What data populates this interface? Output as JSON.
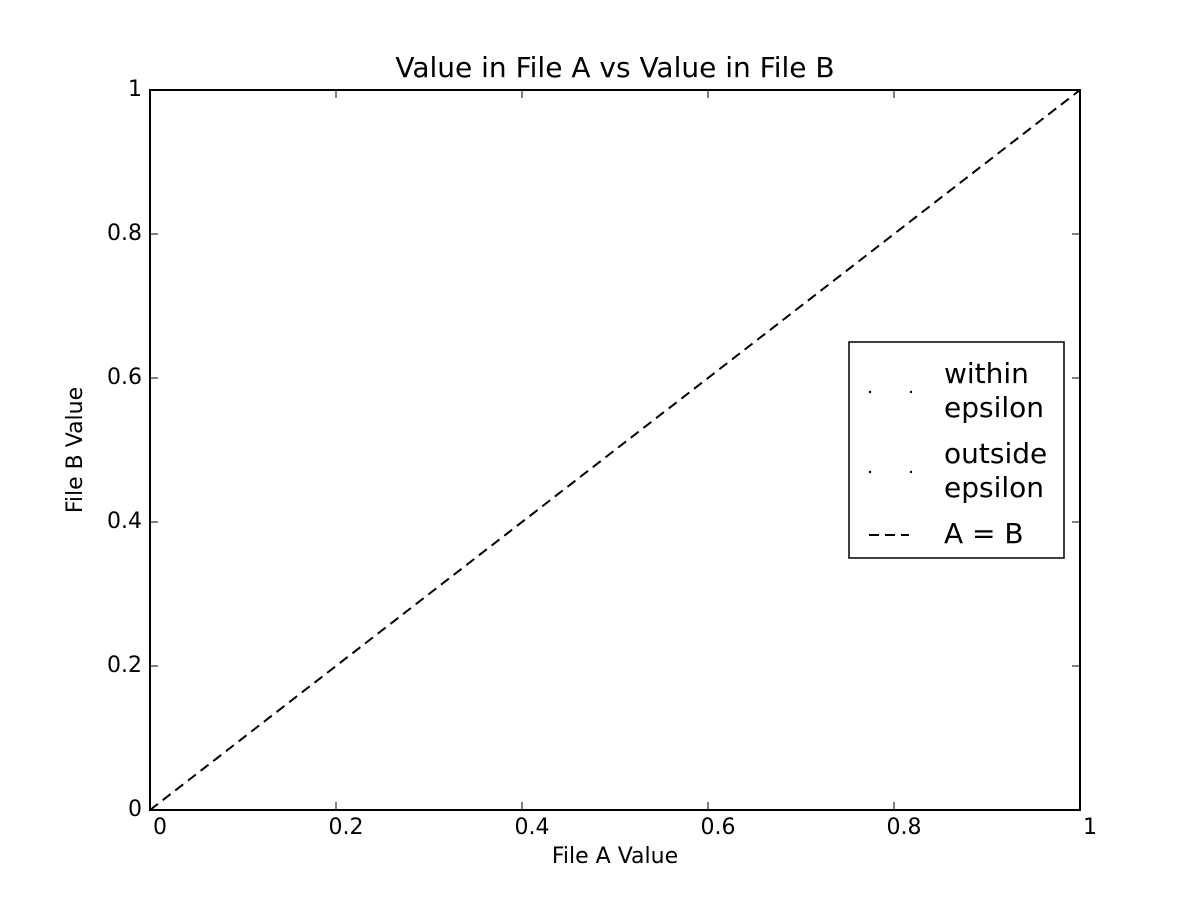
{
  "chart_data": {
    "type": "scatter",
    "title": "Value in File A vs Value in File B",
    "x_label": "File A Value",
    "y_label": "File B Value",
    "xlim": [
      0,
      1
    ],
    "ylim": [
      0,
      1
    ],
    "xticks": [
      0,
      0.2,
      0.4,
      0.6,
      0.8,
      1
    ],
    "yticks": [
      0,
      0.2,
      0.4,
      0.6,
      0.8,
      1
    ],
    "grid": false,
    "legend": "center right",
    "series": [
      {
        "name": "within\nepsilon",
        "type": "scatter",
        "color": "#000000",
        "x": [],
        "y": []
      },
      {
        "name": "outside\nepsilon",
        "type": "scatter",
        "color": "#000000",
        "x": [],
        "y": []
      },
      {
        "name": "A = B",
        "type": "line",
        "dashed": true,
        "color": "#000000",
        "x": [
          0,
          1
        ],
        "y": [
          0,
          1
        ]
      }
    ]
  }
}
